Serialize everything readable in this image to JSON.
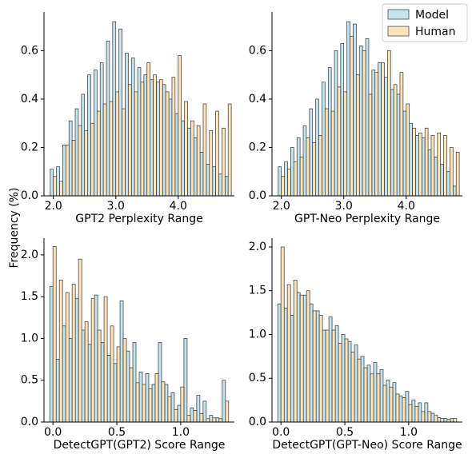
{
  "ylabel": "Frequency (%)",
  "chart_data": [
    {
      "type": "bar",
      "xlabel": "GPT2 Perplexity Range",
      "x": [
        2.0,
        2.1,
        2.2,
        2.3,
        2.4,
        2.5,
        2.6,
        2.7,
        2.8,
        2.9,
        3.0,
        3.1,
        3.2,
        3.3,
        3.4,
        3.5,
        3.6,
        3.7,
        3.8,
        3.9,
        4.0,
        4.1,
        4.2,
        4.3,
        4.4,
        4.5,
        4.6,
        4.7,
        4.8
      ],
      "xlim": [
        1.85,
        4.9
      ],
      "ylim": [
        0,
        0.76
      ],
      "xticks": [
        {
          "value": 2,
          "label": "2.0"
        },
        {
          "value": 3,
          "label": "3.0"
        },
        {
          "value": 4,
          "label": "4.0"
        }
      ],
      "yticks": [
        {
          "value": 0,
          "label": "0.0"
        },
        {
          "value": 0.2,
          "label": "0.2"
        },
        {
          "value": 0.4,
          "label": "0.4"
        },
        {
          "value": 0.6,
          "label": "0.6"
        }
      ],
      "series": [
        {
          "name": "Model",
          "color": "#c4e3ef",
          "values": [
            0.11,
            0.12,
            0.21,
            0.31,
            0.36,
            0.42,
            0.5,
            0.52,
            0.55,
            0.64,
            0.72,
            0.69,
            0.59,
            0.57,
            0.53,
            0.5,
            0.48,
            0.47,
            0.46,
            0.4,
            0.34,
            0.31,
            0.28,
            0.24,
            0.18,
            0.13,
            0.12,
            0.09,
            0.08
          ]
        },
        {
          "name": "Human",
          "color": "#fde4bb",
          "values": [
            0.08,
            0.06,
            0.21,
            0.23,
            0.29,
            0.27,
            0.3,
            0.35,
            0.38,
            0.39,
            0.43,
            0.36,
            0.46,
            0.43,
            0.47,
            0.55,
            0.5,
            0.48,
            0.43,
            0.49,
            0.58,
            0.39,
            0.31,
            0.29,
            0.38,
            0.27,
            0.35,
            0.28,
            0.38
          ]
        }
      ]
    },
    {
      "type": "bar",
      "xlabel": "GPT-Neo Perplexity Range",
      "legend": "upper right",
      "x": [
        2.0,
        2.1,
        2.2,
        2.3,
        2.4,
        2.5,
        2.6,
        2.7,
        2.8,
        2.9,
        3.0,
        3.1,
        3.2,
        3.3,
        3.4,
        3.5,
        3.6,
        3.7,
        3.8,
        3.9,
        4.0,
        4.1,
        4.2,
        4.3,
        4.4,
        4.5,
        4.6,
        4.7,
        4.8
      ],
      "xlim": [
        1.85,
        4.9
      ],
      "ylim": [
        0,
        0.76
      ],
      "xticks": [
        {
          "value": 2,
          "label": "2.0"
        },
        {
          "value": 3,
          "label": "3.0"
        },
        {
          "value": 4,
          "label": "4.0"
        }
      ],
      "yticks": [
        {
          "value": 0,
          "label": "0.0"
        },
        {
          "value": 0.2,
          "label": "0.2"
        },
        {
          "value": 0.4,
          "label": "0.4"
        },
        {
          "value": 0.6,
          "label": "0.6"
        }
      ],
      "series": [
        {
          "name": "Model",
          "color": "#c4e3ef",
          "values": [
            0.12,
            0.14,
            0.2,
            0.24,
            0.29,
            0.36,
            0.4,
            0.47,
            0.53,
            0.6,
            0.63,
            0.72,
            0.71,
            0.62,
            0.65,
            0.52,
            0.55,
            0.49,
            0.44,
            0.42,
            0.35,
            0.3,
            0.25,
            0.24,
            0.19,
            0.16,
            0.13,
            0.1,
            0.04
          ]
        },
        {
          "name": "Human",
          "color": "#fde4bb",
          "values": [
            0.08,
            0.11,
            0.14,
            0.16,
            0.24,
            0.22,
            0.25,
            0.36,
            0.35,
            0.45,
            0.43,
            0.66,
            0.5,
            0.6,
            0.42,
            0.51,
            0.55,
            0.6,
            0.46,
            0.51,
            0.38,
            0.28,
            0.26,
            0.28,
            0.25,
            0.26,
            0.25,
            0.2,
            0.18
          ]
        }
      ]
    },
    {
      "type": "bar",
      "xlabel": "DetectGPT(GPT2) Score Range",
      "x": [
        0.0,
        0.05,
        0.1,
        0.15,
        0.2,
        0.25,
        0.3,
        0.35,
        0.4,
        0.45,
        0.5,
        0.55,
        0.6,
        0.65,
        0.7,
        0.75,
        0.8,
        0.85,
        0.9,
        0.95,
        1.0,
        1.05,
        1.1,
        1.15,
        1.2,
        1.25,
        1.3,
        1.35
      ],
      "xlim": [
        -0.07,
        1.42
      ],
      "ylim": [
        0,
        2.2
      ],
      "xticks": [
        {
          "value": 0,
          "label": "0.0"
        },
        {
          "value": 0.5,
          "label": "0.5"
        },
        {
          "value": 1,
          "label": "1.0"
        }
      ],
      "yticks": [
        {
          "value": 0,
          "label": "0.0"
        },
        {
          "value": 0.5,
          "label": "0.5"
        },
        {
          "value": 1,
          "label": "1.0"
        },
        {
          "value": 1.5,
          "label": "1.5"
        },
        {
          "value": 2,
          "label": "2.0"
        }
      ],
      "series": [
        {
          "name": "Model",
          "color": "#c4e3ef",
          "values": [
            1.62,
            0.75,
            1.15,
            1.0,
            1.48,
            1.1,
            0.93,
            1.52,
            0.95,
            0.8,
            0.7,
            1.45,
            0.85,
            0.95,
            0.6,
            0.58,
            0.45,
            0.95,
            0.45,
            0.35,
            0.2,
            1.0,
            0.17,
            0.32,
            0.25,
            0.08,
            0.05,
            0.5
          ]
        },
        {
          "name": "Human",
          "color": "#fde4bb",
          "values": [
            2.1,
            1.7,
            1.55,
            1.65,
            1.95,
            1.2,
            1.48,
            1.1,
            1.5,
            1.15,
            0.9,
            1.0,
            0.65,
            0.47,
            0.45,
            0.4,
            0.58,
            0.48,
            0.3,
            0.15,
            0.42,
            0.08,
            0.14,
            0.1,
            0.04,
            0.05,
            0.04,
            0.25
          ]
        }
      ]
    },
    {
      "type": "bar",
      "xlabel": "DetectGPT(GPT-Neo) Score Range",
      "x": [
        0.0,
        0.05,
        0.1,
        0.15,
        0.2,
        0.25,
        0.3,
        0.35,
        0.4,
        0.45,
        0.5,
        0.55,
        0.6,
        0.65,
        0.7,
        0.75,
        0.8,
        0.85,
        0.9,
        0.95,
        1.0,
        1.05,
        1.1,
        1.15,
        1.2,
        1.25,
        1.3,
        1.35
      ],
      "xlim": [
        -0.07,
        1.42
      ],
      "ylim": [
        0,
        2.1
      ],
      "xticks": [
        {
          "value": 0,
          "label": "0.0"
        },
        {
          "value": 0.5,
          "label": "0.5"
        },
        {
          "value": 1,
          "label": "1.0"
        }
      ],
      "yticks": [
        {
          "value": 0,
          "label": "0.0"
        },
        {
          "value": 0.5,
          "label": "0.5"
        },
        {
          "value": 1,
          "label": "1.0"
        },
        {
          "value": 1.5,
          "label": "1.5"
        },
        {
          "value": 2,
          "label": "2.0"
        }
      ],
      "series": [
        {
          "name": "Model",
          "color": "#c4e3ef",
          "values": [
            1.35,
            1.3,
            1.22,
            1.48,
            1.45,
            1.35,
            1.27,
            1.05,
            1.2,
            1.1,
            1.0,
            0.92,
            0.88,
            0.75,
            0.65,
            0.68,
            0.6,
            0.48,
            0.45,
            0.3,
            0.35,
            0.25,
            0.22,
            0.22,
            0.1,
            0.05,
            0.04,
            0.04
          ]
        },
        {
          "name": "Human",
          "color": "#fde4bb",
          "values": [
            2.0,
            1.57,
            1.62,
            1.45,
            1.5,
            1.27,
            1.22,
            1.05,
            1.05,
            0.9,
            0.95,
            0.8,
            0.72,
            0.62,
            0.55,
            0.55,
            0.42,
            0.4,
            0.32,
            0.28,
            0.2,
            0.18,
            0.12,
            0.12,
            0.08,
            0.04,
            0.03,
            0.04
          ]
        }
      ]
    }
  ]
}
